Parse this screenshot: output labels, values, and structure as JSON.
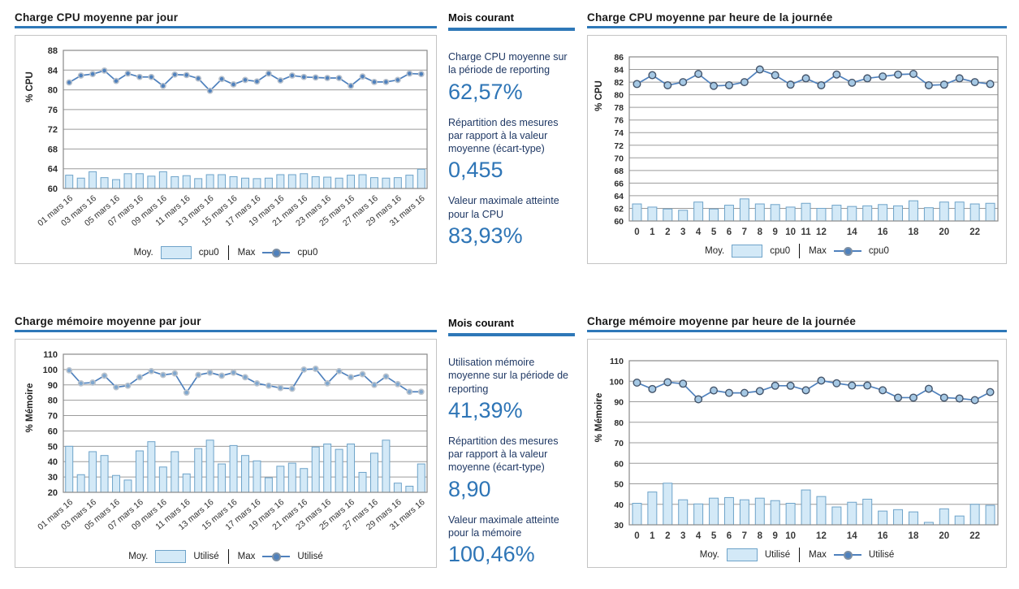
{
  "page": {
    "background": "#ffffff"
  },
  "colors": {
    "accent_blue": "#2e78b8",
    "value_blue": "#2e75b6",
    "bar_fill": "#d3e9f7",
    "bar_stroke": "#6ea3c9",
    "line": "#4f81bd",
    "grid": "#9b9b9b"
  },
  "panels": [
    {
      "heading": "Mois courant",
      "stats": [
        {
          "label": "Charge CPU moyenne sur la période de reporting",
          "value": "62,57%"
        },
        {
          "label": "Répartition des mesures par rapport à la valeur moyenne (écart-type)",
          "value": "0,455"
        },
        {
          "label": "Valeur maximale atteinte pour la CPU",
          "value": "83,93%"
        }
      ]
    },
    {
      "heading": "Mois courant",
      "stats": [
        {
          "label": "Utilisation mémoire moyenne sur la période de reporting",
          "value": "41,39%"
        },
        {
          "label": "Répartition des mesures par rapport à la valeur moyenne (écart-type)",
          "value": "8,90"
        },
        {
          "label": "Valeur maximale atteinte pour la mémoire",
          "value": "100,46%"
        }
      ]
    }
  ],
  "chart_data": [
    {
      "type": "bar+line",
      "title": "Charge CPU  moyenne par jour",
      "ylabel": "% CPU",
      "ylim": [
        60,
        88
      ],
      "yticks": [
        60,
        64,
        68,
        72,
        76,
        80,
        84,
        88
      ],
      "grid": true,
      "legend": {
        "moy_label": "Moy.",
        "moy_series": "cpu0",
        "max_label": "Max",
        "max_series": "cpu0"
      },
      "categories": [
        "01 mars 16",
        "02 mars 16",
        "03 mars 16",
        "04 mars 16",
        "05 mars 16",
        "06 mars 16",
        "07 mars 16",
        "08 mars 16",
        "09 mars 16",
        "10 mars 16",
        "11 mars 16",
        "12 mars 16",
        "13 mars 16",
        "14 mars 16",
        "15 mars 16",
        "16 mars 16",
        "17 mars 16",
        "18 mars 16",
        "19 mars 16",
        "20 mars 16",
        "21 mars 16",
        "22 mars 16",
        "23 mars 16",
        "24 mars 16",
        "25 mars 16",
        "26 mars 16",
        "27 mars 16",
        "28 mars 16",
        "29 mars 16",
        "30 mars 16",
        "31 mars 16"
      ],
      "xticks_shown": [
        "01 mars 16",
        "03 mars 16",
        "05 mars 16",
        "07 mars 16",
        "09 mars 16",
        "11 mars 16",
        "13 mars 16",
        "15 mars 16",
        "17 mars 16",
        "19 mars 16",
        "21 mars 16",
        "23 mars 16",
        "25 mars 16",
        "27 mars 16",
        "29 mars 16",
        "31 mars 16"
      ],
      "series": [
        {
          "name": "cpu0",
          "role": "Moy.",
          "type": "bar",
          "values": [
            62.7,
            62.1,
            63.4,
            62.2,
            61.8,
            63.0,
            63.0,
            62.5,
            63.4,
            62.4,
            62.6,
            62.0,
            62.8,
            62.8,
            62.4,
            62.1,
            62.0,
            62.1,
            62.8,
            62.8,
            63.0,
            62.4,
            62.3,
            62.1,
            62.7,
            62.8,
            62.2,
            62.1,
            62.2,
            62.7,
            63.9
          ]
        },
        {
          "name": "cpu0",
          "role": "Max",
          "type": "line",
          "values": [
            81.5,
            82.9,
            83.2,
            83.9,
            81.8,
            83.3,
            82.6,
            82.6,
            80.8,
            83.1,
            83.0,
            82.3,
            79.8,
            82.2,
            81.1,
            82.0,
            81.7,
            83.3,
            81.9,
            82.9,
            82.6,
            82.5,
            82.4,
            82.4,
            80.8,
            82.7,
            81.6,
            81.6,
            82.0,
            83.3,
            83.2
          ]
        }
      ]
    },
    {
      "type": "bar+line",
      "title": "Charge CPU moyenne par heure de la journée",
      "ylabel": "% CPU",
      "ylim": [
        60,
        86
      ],
      "yticks": [
        60,
        62,
        64,
        66,
        68,
        70,
        72,
        74,
        76,
        78,
        80,
        82,
        84,
        86
      ],
      "grid": true,
      "legend": {
        "moy_label": "Moy.",
        "moy_series": "cpu0",
        "max_label": "Max",
        "max_series": "cpu0"
      },
      "categories": [
        "0",
        "1",
        "2",
        "3",
        "4",
        "5",
        "6",
        "7",
        "8",
        "9",
        "10",
        "11",
        "12",
        "13",
        "14",
        "15",
        "16",
        "17",
        "18",
        "19",
        "20",
        "21",
        "22",
        "23"
      ],
      "xticks_shown": [
        "0",
        "1",
        "2",
        "3",
        "4",
        "5",
        "6",
        "7",
        "8",
        "9",
        "10",
        "11",
        "12",
        "14",
        "16",
        "18",
        "20",
        "22"
      ],
      "series": [
        {
          "name": "cpu0",
          "role": "Moy.",
          "type": "bar",
          "values": [
            62.7,
            62.2,
            61.9,
            61.7,
            63.0,
            61.9,
            62.5,
            63.5,
            62.7,
            62.6,
            62.2,
            62.8,
            62.0,
            62.5,
            62.3,
            62.4,
            62.6,
            62.4,
            63.2,
            62.1,
            63.0,
            63.0,
            62.7,
            62.8
          ]
        },
        {
          "name": "cpu0",
          "role": "Max",
          "type": "line",
          "values": [
            81.7,
            83.1,
            81.5,
            82.0,
            83.3,
            81.4,
            81.5,
            82.0,
            84.0,
            83.1,
            81.6,
            82.6,
            81.5,
            83.2,
            81.9,
            82.6,
            82.9,
            83.2,
            83.3,
            81.5,
            81.6,
            82.6,
            82.0,
            81.7
          ]
        }
      ]
    },
    {
      "type": "bar+line",
      "title": "Charge mémoire moyenne par jour",
      "ylabel": "% Mémoire",
      "ylim": [
        20,
        110
      ],
      "yticks": [
        20,
        30,
        40,
        50,
        60,
        70,
        80,
        90,
        100,
        110
      ],
      "grid": true,
      "legend": {
        "moy_label": "Moy.",
        "moy_series": "Utilisé",
        "max_label": "Max",
        "max_series": "Utilisé"
      },
      "categories": [
        "01 mars 16",
        "02 mars 16",
        "03 mars 16",
        "04 mars 16",
        "05 mars 16",
        "06 mars 16",
        "07 mars 16",
        "08 mars 16",
        "09 mars 16",
        "10 mars 16",
        "11 mars 16",
        "12 mars 16",
        "13 mars 16",
        "14 mars 16",
        "15 mars 16",
        "16 mars 16",
        "17 mars 16",
        "18 mars 16",
        "19 mars 16",
        "20 mars 16",
        "21 mars 16",
        "22 mars 16",
        "23 mars 16",
        "24 mars 16",
        "25 mars 16",
        "26 mars 16",
        "27 mars 16",
        "28 mars 16",
        "29 mars 16",
        "30 mars 16",
        "31 mars 16"
      ],
      "xticks_shown": [
        "01 mars 16",
        "03 mars 16",
        "05 mars 16",
        "07 mars 16",
        "09 mars 16",
        "11 mars 16",
        "13 mars 16",
        "15 mars 16",
        "17 mars 16",
        "19 mars 16",
        "21 mars 16",
        "23 mars 16",
        "25 mars 16",
        "27 mars 16",
        "29 mars 16",
        "31 mars 16"
      ],
      "series": [
        {
          "name": "Utilisé",
          "role": "Moy.",
          "type": "bar",
          "values": [
            50,
            31.5,
            46.5,
            44,
            31,
            28,
            47,
            53,
            36.5,
            46.5,
            32,
            48.5,
            54,
            38.5,
            50.5,
            44,
            40.5,
            29.5,
            37,
            39,
            35.5,
            49.5,
            51.5,
            48,
            51.5,
            33,
            45.5,
            54,
            26,
            24,
            38.5
          ]
        },
        {
          "name": "Utilisé",
          "role": "Max",
          "type": "line",
          "values": [
            99.5,
            91,
            91.5,
            96,
            88.5,
            89.5,
            95,
            99,
            96.5,
            97.5,
            85,
            96.5,
            98,
            96,
            98,
            95,
            91,
            89.5,
            88,
            87.5,
            100,
            100.5,
            91,
            99,
            95,
            97,
            90,
            95.5,
            90.5,
            85.5,
            85.5
          ]
        }
      ]
    },
    {
      "type": "bar+line",
      "title": "Charge mémoire moyenne par heure de la journée",
      "ylabel": "% Mémoire",
      "ylim": [
        30,
        110
      ],
      "yticks": [
        30,
        40,
        50,
        60,
        70,
        80,
        90,
        100,
        110
      ],
      "grid": true,
      "legend": {
        "moy_label": "Moy.",
        "moy_series": "Utilisé",
        "max_label": "Max",
        "max_series": "Utilisé"
      },
      "categories": [
        "0",
        "1",
        "2",
        "3",
        "4",
        "5",
        "6",
        "7",
        "8",
        "9",
        "10",
        "11",
        "12",
        "13",
        "14",
        "15",
        "16",
        "17",
        "18",
        "19",
        "20",
        "21",
        "22",
        "23"
      ],
      "xticks_shown": [
        "0",
        "1",
        "2",
        "3",
        "4",
        "5",
        "6",
        "7",
        "8",
        "9",
        "10",
        "12",
        "14",
        "16",
        "18",
        "20",
        "22"
      ],
      "series": [
        {
          "name": "Utilisé",
          "role": "Moy.",
          "type": "bar",
          "values": [
            40.5,
            46,
            50.3,
            42.2,
            40.2,
            43,
            43.3,
            42.2,
            43,
            41.8,
            40.5,
            47,
            43.8,
            38.7,
            41,
            42.5,
            36.7,
            37.4,
            36.3,
            31.2,
            37.8,
            34.3,
            40,
            39.5
          ]
        },
        {
          "name": "Utilisé",
          "role": "Max",
          "type": "line",
          "values": [
            99.3,
            96.2,
            99.5,
            98.8,
            91.2,
            95.5,
            94.3,
            94.3,
            95.2,
            97.8,
            97.8,
            95.6,
            100.3,
            99,
            97.9,
            97.9,
            95.6,
            92,
            92,
            96.3,
            92,
            91.6,
            90.8,
            94.7
          ]
        }
      ]
    }
  ]
}
